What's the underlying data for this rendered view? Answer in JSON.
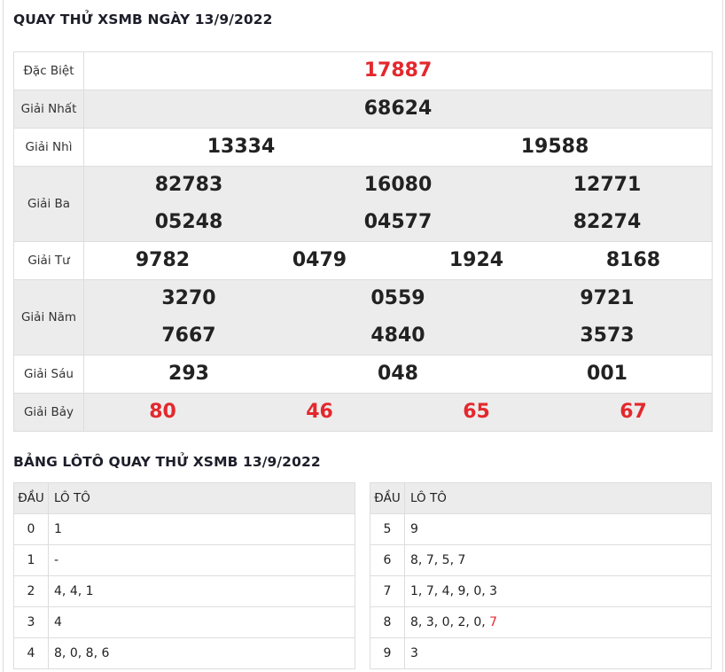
{
  "title": "QUAY THỬ XSMB NGÀY 13/9/2022",
  "prizes": [
    {
      "label": "Đặc Biệt",
      "cols": 1,
      "numbers": [
        "17887"
      ],
      "red": true
    },
    {
      "label": "Giải Nhất",
      "cols": 1,
      "numbers": [
        "68624"
      ]
    },
    {
      "label": "Giải Nhì",
      "cols": 2,
      "numbers": [
        "13334",
        "19588"
      ]
    },
    {
      "label": "Giải Ba",
      "cols": 3,
      "numbers": [
        "82783",
        "16080",
        "12771",
        "05248",
        "04577",
        "82274"
      ]
    },
    {
      "label": "Giải Tư",
      "cols": 4,
      "numbers": [
        "9782",
        "0479",
        "1924",
        "8168"
      ]
    },
    {
      "label": "Giải Năm",
      "cols": 3,
      "numbers": [
        "3270",
        "0559",
        "9721",
        "7667",
        "4840",
        "3573"
      ]
    },
    {
      "label": "Giải Sáu",
      "cols": 3,
      "numbers": [
        "293",
        "048",
        "001"
      ]
    },
    {
      "label": "Giải Bảy",
      "cols": 4,
      "numbers": [
        "80",
        "46",
        "65",
        "67"
      ],
      "red": true
    }
  ],
  "loto_title": "BẢNG LÔTÔ QUAY THỬ XSMB 13/9/2022",
  "loto_headers": {
    "dau": "ĐẦU",
    "loto": "LÔ TÔ"
  },
  "loto_left": [
    {
      "dau": "0",
      "values": [
        "1"
      ]
    },
    {
      "dau": "1",
      "values": [
        "-"
      ]
    },
    {
      "dau": "2",
      "values": [
        "4",
        "4",
        "1"
      ]
    },
    {
      "dau": "3",
      "values": [
        "4"
      ]
    },
    {
      "dau": "4",
      "values": [
        "8",
        "0",
        "8",
        "6"
      ]
    }
  ],
  "loto_right": [
    {
      "dau": "5",
      "values": [
        "9"
      ]
    },
    {
      "dau": "6",
      "values": [
        "8",
        "7",
        "5",
        "7"
      ]
    },
    {
      "dau": "7",
      "values": [
        "1",
        "7",
        "4",
        "9",
        "0",
        "3"
      ]
    },
    {
      "dau": "8",
      "values": [
        "8",
        "3",
        "0",
        "2",
        "0",
        "7"
      ],
      "highlight": [
        5
      ]
    },
    {
      "dau": "9",
      "values": [
        "3"
      ]
    }
  ],
  "colors": {
    "red": "#e3282d",
    "row_gray": "#ececec",
    "border": "#dddddd"
  }
}
